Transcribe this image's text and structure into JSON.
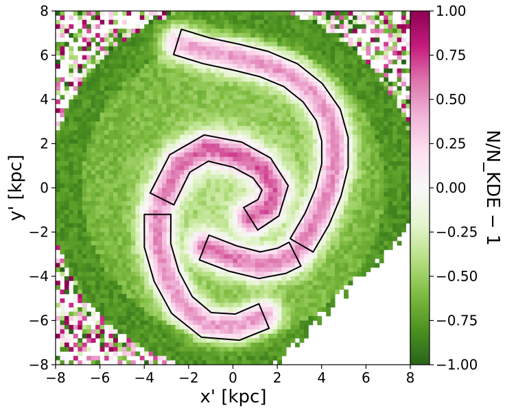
{
  "chart_data": {
    "type": "heatmap",
    "title": "",
    "xlabel": "x' [kpc]",
    "ylabel": "y' [kpc]",
    "xlim": [
      -8,
      8
    ],
    "ylim": [
      -8,
      8
    ],
    "x_ticks": [
      {
        "value": -8,
        "label": "−8"
      },
      {
        "value": -6,
        "label": "−6"
      },
      {
        "value": -4,
        "label": "−4"
      },
      {
        "value": -2,
        "label": "−2"
      },
      {
        "value": 0,
        "label": "0"
      },
      {
        "value": 2,
        "label": "2"
      },
      {
        "value": 4,
        "label": "4"
      },
      {
        "value": 6,
        "label": "6"
      },
      {
        "value": 8,
        "label": "8"
      }
    ],
    "y_ticks": [
      {
        "value": 8,
        "label": "8"
      },
      {
        "value": 6,
        "label": "6"
      },
      {
        "value": 4,
        "label": "4"
      },
      {
        "value": 2,
        "label": "2"
      },
      {
        "value": 0,
        "label": "0"
      },
      {
        "value": -2,
        "label": "−2"
      },
      {
        "value": -4,
        "label": "−4"
      },
      {
        "value": -6,
        "label": "−6"
      },
      {
        "value": -8,
        "label": "−8"
      }
    ],
    "colorbar": {
      "label": "N/N_KDE − 1",
      "range": [
        -1,
        1
      ],
      "colormap": "PiYG_r",
      "ticks": [
        {
          "value": 1.0,
          "label": "1.00"
        },
        {
          "value": 0.75,
          "label": "0.75"
        },
        {
          "value": 0.5,
          "label": "0.50"
        },
        {
          "value": 0.25,
          "label": "0.25"
        },
        {
          "value": 0.0,
          "label": "0.00"
        },
        {
          "value": -0.25,
          "label": "−0.25"
        },
        {
          "value": -0.5,
          "label": "−0.50"
        },
        {
          "value": -0.75,
          "label": "−0.75"
        },
        {
          "value": -1.0,
          "label": "−1.00"
        }
      ]
    },
    "contour_level": 0.0,
    "features": {
      "outer_arm": [
        [
          -2.5,
          6.6
        ],
        [
          -1.2,
          6.2
        ],
        [
          0.2,
          5.9
        ],
        [
          1.4,
          5.6
        ],
        [
          2.6,
          5.1
        ],
        [
          3.6,
          4.3
        ],
        [
          4.3,
          3.3
        ],
        [
          4.6,
          2.2
        ],
        [
          4.6,
          1.0
        ],
        [
          4.3,
          -0.2
        ],
        [
          3.8,
          -1.4
        ],
        [
          3.1,
          -2.6
        ]
      ],
      "inner_arm": [
        [
          -3.2,
          -0.5
        ],
        [
          -2.4,
          1.1
        ],
        [
          -1.2,
          1.8
        ],
        [
          0.2,
          1.5
        ],
        [
          1.3,
          0.9
        ],
        [
          1.9,
          0.0
        ],
        [
          1.6,
          -0.9
        ],
        [
          0.8,
          -1.4
        ]
      ],
      "south_arm": [
        [
          -3.4,
          -1.2
        ],
        [
          -3.4,
          -2.6
        ],
        [
          -3.0,
          -4.0
        ],
        [
          -2.3,
          -5.3
        ],
        [
          -1.2,
          -6.2
        ],
        [
          0.2,
          -6.3
        ],
        [
          1.4,
          -5.8
        ]
      ],
      "middle_arm": [
        [
          -1.3,
          -2.7
        ],
        [
          0.0,
          -3.2
        ],
        [
          1.2,
          -3.5
        ],
        [
          2.2,
          -3.3
        ],
        [
          2.8,
          -3.0
        ]
      ]
    }
  }
}
